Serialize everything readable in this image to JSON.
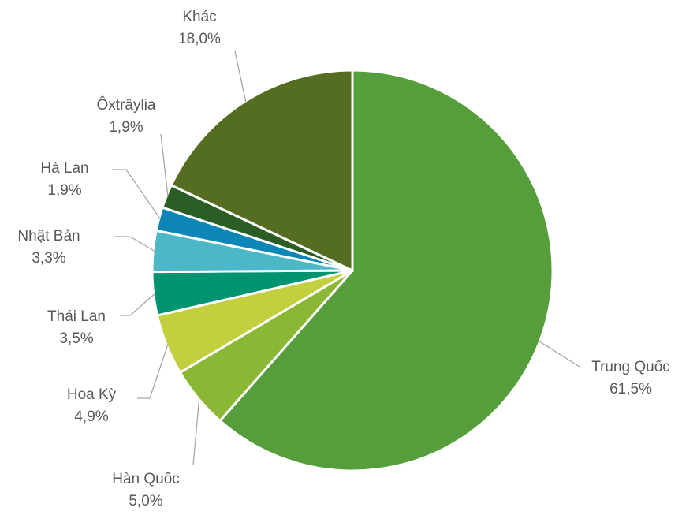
{
  "chart_data": {
    "type": "pie",
    "categories": [
      "Trung Quốc",
      "Hàn Quốc",
      "Hoa Kỳ",
      "Thái Lan",
      "Nhật Bản",
      "Hà Lan",
      "Ôxtrâylia",
      "Khác"
    ],
    "values": [
      61.5,
      5.0,
      4.9,
      3.5,
      3.3,
      1.9,
      1.9,
      18.0
    ],
    "value_labels": [
      "61,5%",
      "5,0%",
      "4,9%",
      "3,5%",
      "3,3%",
      "1,9%",
      "1,9%",
      "18,0%"
    ],
    "colors": [
      "#559e3b",
      "#8bb834",
      "#c2d03f",
      "#00936f",
      "#4cb7c7",
      "#0b86b6",
      "#2a5e24",
      "#546d20"
    ]
  }
}
